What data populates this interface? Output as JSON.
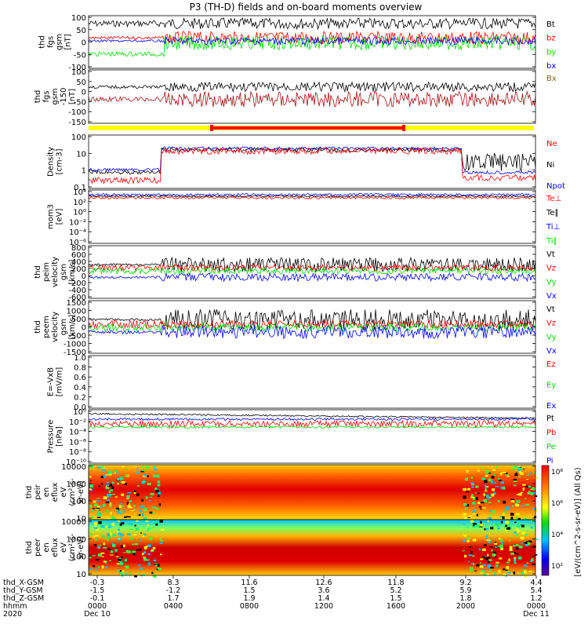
{
  "chart_data": {
    "type": "line",
    "title": "P3 (TH-D) fields and on-board moments overview",
    "colors": {
      "black": "#000000",
      "red": "#ff0000",
      "green": "#00dd00",
      "blue": "#0000ff",
      "darkred": "#a01010",
      "olive": "#806020",
      "yellow": "#ffff00"
    },
    "panels": [
      {
        "id": "fgs",
        "ylabel": [
          "thd",
          "fgs",
          "gsm",
          "[nT]"
        ],
        "yticks": [
          "100",
          "50",
          "0",
          "-50",
          "-100"
        ],
        "ylim": [
          -100,
          100
        ],
        "legend": [
          {
            "name": "Bt",
            "color": "black"
          },
          {
            "name": "bz",
            "color": "red"
          },
          {
            "name": "by",
            "color": "green"
          },
          {
            "name": "bx",
            "color": "blue"
          }
        ]
      },
      {
        "id": "fgs_gse",
        "ylabel": [
          "thd",
          "fgs",
          "gsm",
          "-150",
          "[nT]"
        ],
        "yticks": [
          "100",
          "50",
          "0",
          "-50",
          "-100",
          "-150"
        ],
        "ylim": [
          -150,
          100
        ],
        "legend": [
          {
            "name": "Bx",
            "color": "olive"
          }
        ]
      },
      {
        "id": "density",
        "ylabel": [
          "Density",
          "[cm-3]"
        ],
        "yticks": [
          "100",
          "10",
          "1",
          "0.1"
        ],
        "log": true,
        "legend": [
          {
            "name": "Ne",
            "color": "red"
          },
          {
            "name": "Ni",
            "color": "black"
          },
          {
            "name": "Npot",
            "color": "blue"
          }
        ]
      },
      {
        "id": "temp",
        "ylabel": [
          "mom3",
          "[eV]"
        ],
        "yticks": [
          "10⁴",
          "10²",
          "10⁰",
          "10⁻²",
          "10⁻⁴",
          "10⁻⁶"
        ],
        "log": true,
        "legend": [
          {
            "name": "Te⊥",
            "color": "red"
          },
          {
            "name": "Te∥",
            "color": "black"
          },
          {
            "name": "Ti⊥",
            "color": "blue"
          },
          {
            "name": "Ti∥",
            "color": "green"
          }
        ]
      },
      {
        "id": "peim",
        "ylabel": [
          "thd",
          "peim",
          "velocity",
          "gsm",
          "[km/s]"
        ],
        "yticks": [
          "800",
          "600",
          "400",
          "200",
          "0",
          "-200",
          "-400",
          "-600"
        ],
        "ylim": [
          -600,
          800
        ],
        "legend": [
          {
            "name": "Vt",
            "color": "black"
          },
          {
            "name": "Vz",
            "color": "red"
          },
          {
            "name": "Vy",
            "color": "green"
          },
          {
            "name": "Vx",
            "color": "blue"
          }
        ]
      },
      {
        "id": "peem",
        "ylabel": [
          "thd",
          "peem",
          "velocity",
          "gsm",
          "[km/s]"
        ],
        "yticks": [
          "1500",
          "1000",
          "500",
          "0",
          "-500",
          "-1000",
          "-1500"
        ],
        "ylim": [
          -1500,
          1500
        ],
        "legend": [
          {
            "name": "Vt",
            "color": "black"
          },
          {
            "name": "Vz",
            "color": "red"
          },
          {
            "name": "Vy",
            "color": "green"
          },
          {
            "name": "Vx",
            "color": "blue"
          }
        ]
      },
      {
        "id": "efield",
        "ylabel": [
          "E=-VxB",
          "[mV/m]"
        ],
        "yticks": [
          "1.0",
          "0.8",
          "0.6",
          "0.4",
          "0.2",
          "0.0"
        ],
        "ylim": [
          0,
          1
        ],
        "legend": [
          {
            "name": "Ez",
            "color": "red"
          },
          {
            "name": "Ey",
            "color": "green"
          },
          {
            "name": "Ex",
            "color": "blue"
          }
        ]
      },
      {
        "id": "pressure",
        "ylabel": [
          "Pressure",
          "[nPa]"
        ],
        "yticks": [
          "10⁰",
          "10⁻²",
          "10⁻⁴",
          "10⁻⁶",
          "10⁻⁸",
          "10⁻¹⁰"
        ],
        "log": true,
        "legend": [
          {
            "name": "Pt",
            "color": "black"
          },
          {
            "name": "Pb",
            "color": "red"
          },
          {
            "name": "Pe",
            "color": "green"
          },
          {
            "name": "Pi",
            "color": "blue"
          }
        ]
      },
      {
        "id": "peir",
        "ylabel": [
          "thd",
          "peir",
          "en",
          "eflux",
          "eV",
          "(cm²-s-",
          "sr-eV)"
        ],
        "yticks": [
          "10000",
          "1000",
          "100",
          "10"
        ],
        "log": true,
        "spectrogram": true
      },
      {
        "id": "peer",
        "ylabel": [
          "thd",
          "peer",
          "en",
          "eflux",
          "eV",
          "(cm²-s-",
          "sr-eV)"
        ],
        "yticks": [
          "10000",
          "1000",
          "100",
          "10"
        ],
        "log": true,
        "spectrogram": true
      }
    ],
    "colorbar": {
      "label": "[eV/(cm^2-s-sr-eV)] (All Qs)",
      "ticks": [
        "10⁸",
        "10⁶",
        "10⁴",
        "10²"
      ]
    },
    "xaxis": {
      "rows": [
        {
          "label": "thd_X-GSM",
          "values": [
            "-0.3",
            "8.3",
            "11.6",
            "12.6",
            "11.8",
            "9.2",
            "4.4"
          ]
        },
        {
          "label": "thd_Y-GSM",
          "values": [
            "-1.5",
            "-1.2",
            "1.5",
            "3.6",
            "5.2",
            "5.9",
            "5.4"
          ]
        },
        {
          "label": "thd_Z-GSM",
          "values": [
            "-0.1",
            "1.7",
            "1.9",
            "1.4",
            "1.5",
            "1.8",
            "1.2"
          ]
        },
        {
          "label": "hhmm",
          "values": [
            "0000",
            "0400",
            "0800",
            "1200",
            "1600",
            "2000",
            "0000"
          ]
        },
        {
          "label": "2020",
          "values": [
            "Dec 10",
            "",
            "",
            "",
            "",
            "",
            "Dec 11"
          ]
        }
      ]
    }
  }
}
